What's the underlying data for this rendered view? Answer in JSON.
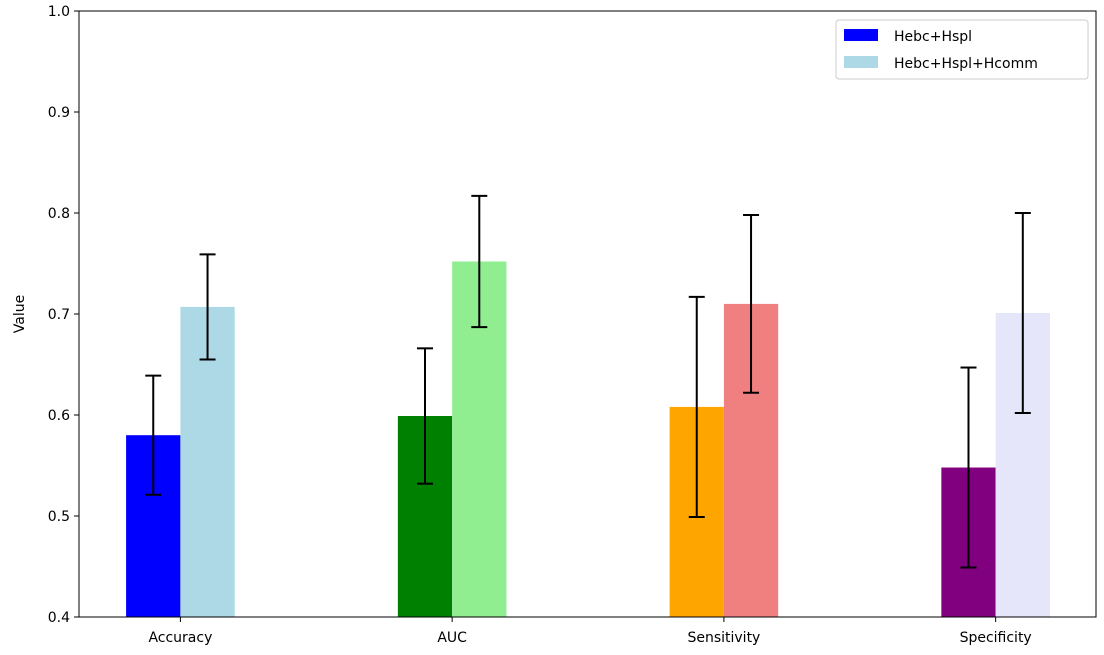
{
  "chart_data": {
    "type": "bar",
    "title": "",
    "xlabel": "",
    "ylabel": "Value",
    "ylim": [
      0.4,
      1.0
    ],
    "yticks": [
      "0.4",
      "0.5",
      "0.6",
      "0.7",
      "0.8",
      "0.9",
      "1.0"
    ],
    "grid": false,
    "legend_position": "top-right",
    "categories": [
      "Accuracy",
      "AUC",
      "Sensitivity",
      "Specificity"
    ],
    "series": [
      {
        "name": "Hebc+Hspl",
        "legend_color": "#0000ff",
        "values": [
          0.58,
          0.599,
          0.608,
          0.548
        ],
        "errors": [
          0.059,
          0.067,
          0.109,
          0.099
        ],
        "colors": [
          "#0000ff",
          "#008000",
          "#ffa500",
          "#800080"
        ]
      },
      {
        "name": "Hebc+Hspl+Hcomm",
        "legend_color": "#add8e6",
        "values": [
          0.707,
          0.752,
          0.71,
          0.701
        ],
        "errors": [
          0.052,
          0.065,
          0.088,
          0.099
        ],
        "colors": [
          "#add8e6",
          "#90ee90",
          "#f08080",
          "#e6e6fa"
        ]
      }
    ]
  }
}
